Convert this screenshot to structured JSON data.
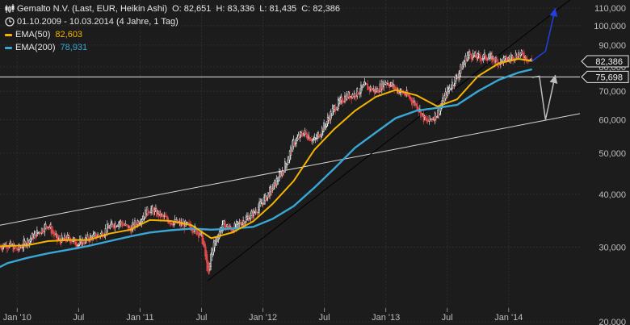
{
  "header": {
    "title": "Gemalto N.V. (Last, EUR, Heikin Ashi)",
    "ohlc": "O: 82,651  H: 83,336  L: 81,435  C: 82,386",
    "range": "01.10.2009 - 10.03.2014 (4 Jahre, 1 Tag)",
    "ema50_label": "EMA(50)",
    "ema50_value": "82,603",
    "ema200_label": "EMA(200)",
    "ema200_value": "78,931"
  },
  "colors": {
    "background": "#1c1c1c",
    "candle_up": "#ffffff",
    "candle_down": "#e04a4a",
    "ema50": "#f5b400",
    "ema200": "#39a7d6",
    "forecast_up": "#2040e0",
    "forecast_down": "#bdbdbd",
    "trendline_white": "#d8d8d8",
    "trendline_black": "#000000",
    "axis_text": "#bdbdbd"
  },
  "icons": {
    "chart": "candlestick-icon",
    "clock": "clock-icon"
  },
  "chart_data": {
    "type": "line",
    "chart_style": "heikin-ashi candlestick",
    "scale": "log",
    "y_ticks": [
      20,
      30,
      40,
      50,
      60,
      70,
      80,
      90,
      100,
      110
    ],
    "y_tick_labels": [
      "20,000",
      "30,000",
      "40,000",
      "50,000",
      "60,000",
      "70,000",
      "80,000",
      "90,000",
      "100,000",
      "110,000"
    ],
    "ylim": [
      20,
      115
    ],
    "xlim": [
      2009.86,
      2014.58
    ],
    "x_ticks": [
      2010.0,
      2010.5,
      2011.0,
      2011.5,
      2012.0,
      2012.5,
      2013.0,
      2013.5,
      2014.0
    ],
    "x_tick_labels": [
      "Jan '10",
      "Jul",
      "Jan '11",
      "Jul",
      "Jan '12",
      "Jul",
      "Jan '13",
      "Jul",
      "Jan '14"
    ],
    "grid": true,
    "series": [
      {
        "name": "Price",
        "x": [
          2009.75,
          2009.83,
          2009.92,
          2010.0,
          2010.08,
          2010.17,
          2010.25,
          2010.33,
          2010.42,
          2010.5,
          2010.58,
          2010.67,
          2010.75,
          2010.83,
          2010.92,
          2011.0,
          2011.08,
          2011.17,
          2011.25,
          2011.33,
          2011.42,
          2011.5,
          2011.56,
          2011.58,
          2011.67,
          2011.75,
          2011.83,
          2011.92,
          2012.0,
          2012.08,
          2012.17,
          2012.25,
          2012.33,
          2012.42,
          2012.5,
          2012.58,
          2012.67,
          2012.75,
          2012.83,
          2012.92,
          2013.0,
          2013.08,
          2013.17,
          2013.25,
          2013.33,
          2013.42,
          2013.5,
          2013.58,
          2013.67,
          2013.75,
          2013.83,
          2013.92,
          2014.0,
          2014.08,
          2014.15,
          2014.19
        ],
        "values": [
          31.5,
          30.0,
          30.5,
          29.5,
          31.0,
          32.5,
          34.0,
          31.0,
          31.5,
          30.5,
          31.5,
          32.0,
          33.5,
          34.5,
          33.0,
          35.0,
          37.0,
          35.5,
          34.5,
          34.0,
          33.5,
          32.0,
          25.5,
          29.5,
          34.0,
          33.0,
          34.5,
          36.0,
          38.5,
          41.5,
          46.0,
          53.0,
          56.0,
          53.5,
          58.0,
          64.0,
          68.0,
          69.0,
          72.0,
          70.0,
          74.0,
          71.0,
          68.5,
          65.0,
          59.0,
          62.0,
          70.0,
          76.0,
          86.0,
          84.0,
          84.5,
          82.0,
          83.5,
          86.0,
          84.0,
          82.4
        ]
      },
      {
        "name": "EMA(50)",
        "x": [
          2009.75,
          2009.92,
          2010.08,
          2010.25,
          2010.42,
          2010.58,
          2010.75,
          2010.92,
          2011.08,
          2011.25,
          2011.42,
          2011.58,
          2011.75,
          2011.92,
          2012.08,
          2012.25,
          2012.42,
          2012.58,
          2012.75,
          2012.92,
          2013.08,
          2013.25,
          2013.42,
          2013.58,
          2013.75,
          2013.92,
          2014.08,
          2014.19
        ],
        "values": [
          30.0,
          30.2,
          30.3,
          31.0,
          31.2,
          31.2,
          32.3,
          33.0,
          34.8,
          34.6,
          33.8,
          31.5,
          32.5,
          34.5,
          38.0,
          43.0,
          51.0,
          57.0,
          63.0,
          68.0,
          70.5,
          68.5,
          64.5,
          67.0,
          76.0,
          81.5,
          83.5,
          82.6
        ]
      },
      {
        "name": "EMA(200)",
        "x": [
          2009.75,
          2009.92,
          2010.08,
          2010.25,
          2010.42,
          2010.58,
          2010.75,
          2010.92,
          2011.08,
          2011.25,
          2011.42,
          2011.58,
          2011.75,
          2011.92,
          2012.08,
          2012.25,
          2012.42,
          2012.58,
          2012.75,
          2012.92,
          2013.08,
          2013.25,
          2013.42,
          2013.58,
          2013.75,
          2013.92,
          2014.08,
          2014.19
        ],
        "values": [
          26.0,
          27.5,
          28.3,
          29.0,
          29.6,
          30.2,
          31.0,
          31.8,
          32.5,
          32.9,
          33.2,
          33.0,
          33.2,
          33.5,
          35.0,
          37.5,
          41.5,
          46.0,
          51.5,
          56.0,
          60.5,
          63.0,
          64.0,
          65.0,
          70.0,
          74.5,
          77.5,
          78.9
        ]
      }
    ],
    "horizontal_line": 75.698,
    "price_labels": [
      "82,386",
      "75,698"
    ],
    "trendlines": [
      {
        "from": [
          2009.86,
          33.8
        ],
        "to": [
          2014.58,
          62.0
        ]
      },
      {
        "from": [
          2011.55,
          25.0
        ],
        "to": [
          2014.58,
          120.0
        ]
      }
    ],
    "forecast_up": {
      "x": [
        2014.19,
        2014.25,
        2014.3,
        2014.38
      ],
      "values": [
        82.4,
        85.0,
        87.0,
        110.0
      ]
    },
    "forecast_down": {
      "x": [
        2014.19,
        2014.25,
        2014.3,
        2014.38
      ],
      "values": [
        75.5,
        76.0,
        60.0,
        76.5
      ]
    }
  }
}
